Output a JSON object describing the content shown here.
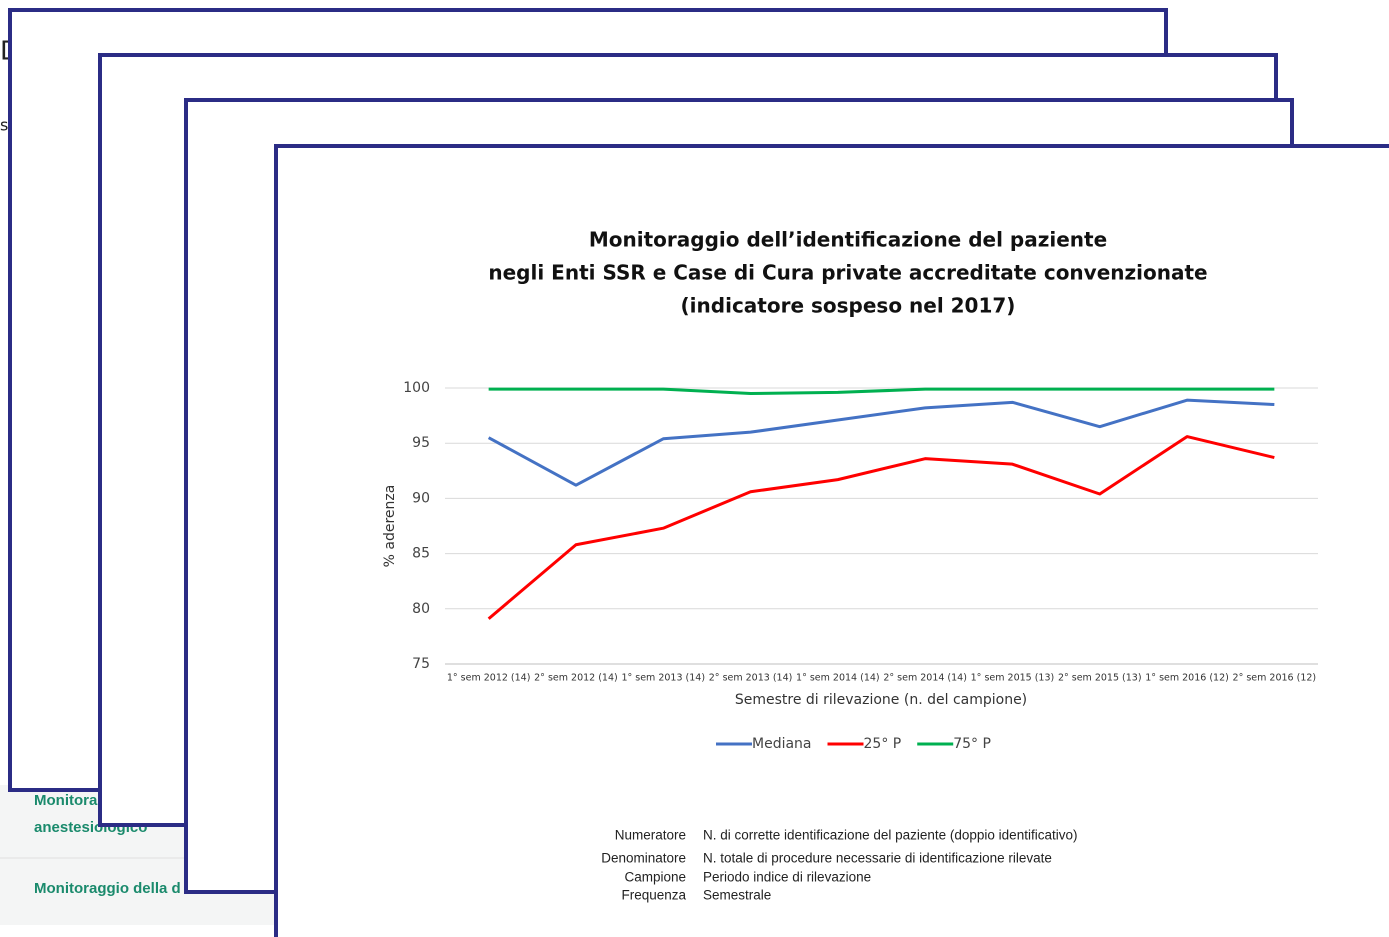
{
  "background": {
    "heading_fragment": "D",
    "text_fragment": "s",
    "items": [
      [
        "Monitora",
        "anestesiologico"
      ],
      [
        "Monitoraggio della d"
      ]
    ]
  },
  "chart_data": {
    "type": "line",
    "title": [
      "Monitoraggio dell’identificazione del paziente",
      "negli Enti SSR e Case di Cura private accreditate convenzionate",
      "(indicatore sospeso nel 2017)"
    ],
    "x_label": "Semestre di rilevazione (n. del campione)",
    "y_label": "% aderenza",
    "categories": [
      "1° sem 2012 (14)",
      "2° sem 2012 (14)",
      "1° sem 2013 (14)",
      "2° sem 2013 (14)",
      "1° sem 2014 (14)",
      "2° sem 2014 (14)",
      "1° sem 2015 (13)",
      "2° sem 2015 (13)",
      "1° sem 2016 (12)",
      "2° sem 2016 (12)"
    ],
    "series": [
      {
        "name": "Mediana",
        "color": "#4472c4",
        "values": [
          95.5,
          91.2,
          95.4,
          96.0,
          97.1,
          98.2,
          98.7,
          96.5,
          98.9,
          98.5
        ]
      },
      {
        "name": "25° P",
        "color": "#ff0000",
        "values": [
          79.1,
          85.8,
          87.3,
          90.6,
          91.7,
          93.6,
          93.1,
          90.4,
          95.6,
          93.7
        ]
      },
      {
        "name": "75° P",
        "color": "#00b050",
        "values": [
          99.9,
          99.9,
          99.9,
          99.5,
          99.6,
          99.9,
          99.9,
          99.9,
          99.9,
          99.9
        ]
      }
    ],
    "ylim": [
      75,
      100
    ],
    "yticks": [
      75,
      80,
      85,
      90,
      95,
      100
    ],
    "grid": true,
    "legend": "bottom"
  },
  "definitions": [
    [
      "Numeratore",
      "N. di corrette identificazione del paziente (doppio identificativo)"
    ],
    [
      "Denominatore",
      "N. totale di procedure necessarie di identificazione rilevate"
    ],
    [
      "Campione",
      "Periodo indice di rilevazione"
    ],
    [
      "Frequenza",
      "Semestrale"
    ]
  ]
}
